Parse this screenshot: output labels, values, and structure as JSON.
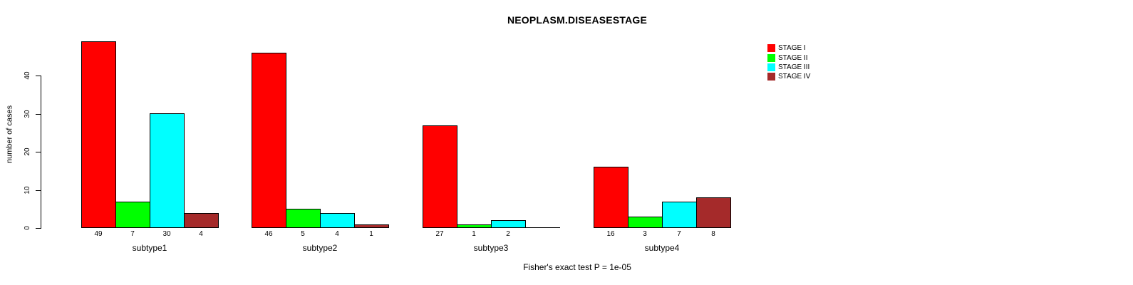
{
  "chart_data": {
    "type": "bar",
    "title": "NEOPLASM.DISEASESTAGE",
    "ylabel": "number of cases",
    "xlabel": "",
    "categories": [
      "subtype1",
      "subtype2",
      "subtype3",
      "subtype4"
    ],
    "series": [
      {
        "name": "STAGE I",
        "color": "#FF0000",
        "values": [
          49,
          46,
          27,
          16
        ]
      },
      {
        "name": "STAGE II",
        "color": "#00FF00",
        "values": [
          7,
          5,
          1,
          3
        ]
      },
      {
        "name": "STAGE III",
        "color": "#00FFFF",
        "values": [
          30,
          4,
          2,
          7
        ]
      },
      {
        "name": "STAGE IV",
        "color": "#A52A2A",
        "values": [
          4,
          1,
          0,
          8
        ]
      }
    ],
    "yticks": [
      0,
      10,
      20,
      30,
      40
    ],
    "ylim": [
      0,
      49
    ],
    "grid": false,
    "legend_position": "top-right",
    "bar_value_labels": true,
    "annotation": "Fisher's exact test P = 1e-05"
  }
}
